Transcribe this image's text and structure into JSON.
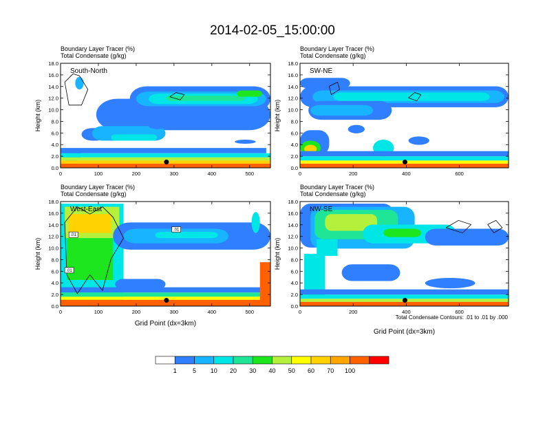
{
  "title": "2014-02-05_15:00:00",
  "footnote": "Total Condensate Contours: .01 to .01 by .000",
  "colorbar": {
    "colors": [
      "#ffffff",
      "#2f7fff",
      "#19b4ff",
      "#00e6e6",
      "#1ee696",
      "#1ee61e",
      "#b4f03c",
      "#ffff00",
      "#ffd200",
      "#ffa500",
      "#ff6000",
      "#ff0000"
    ],
    "labels": [
      "1",
      "5",
      "10",
      "20",
      "30",
      "40",
      "50",
      "60",
      "70",
      "100"
    ]
  },
  "chart_data": [
    {
      "type": "heatmap",
      "label": "South-North",
      "field_name": "Boundary Layer Tracer",
      "field_units": "(%)",
      "contour_name": "Total Condensate",
      "contour_units": "(g/kg)",
      "ylabel": "Height (km)",
      "xlabel": "",
      "xlim": [
        0,
        555
      ],
      "ylim": [
        0,
        18
      ],
      "xticks": [
        "0",
        "100",
        "200",
        "300",
        "400",
        "500"
      ],
      "yticks": [
        "0.0",
        "2.0",
        "4.0",
        "6.0",
        "8.0",
        "10.0",
        "12.0",
        "14.0",
        "16.0",
        "18.0"
      ],
      "marker": {
        "x": 280,
        "y": 1.0
      }
    },
    {
      "type": "heatmap",
      "label": "SW-NE",
      "field_name": "Boundary Layer Tracer",
      "field_units": "(%)",
      "contour_name": "Total Condensate",
      "contour_units": "(g/kg)",
      "ylabel": "Height (km)",
      "xlabel": "",
      "xlim": [
        0,
        785
      ],
      "ylim": [
        0,
        18
      ],
      "xticks": [
        "0",
        "200",
        "400",
        "600"
      ],
      "yticks": [
        "0.0",
        "2.0",
        "4.0",
        "6.0",
        "8.0",
        "10.0",
        "12.0",
        "14.0",
        "16.0",
        "18.0"
      ],
      "marker": {
        "x": 395,
        "y": 1.0
      }
    },
    {
      "type": "heatmap",
      "label": "West-East",
      "field_name": "Boundary Layer Tracer",
      "field_units": "(%)",
      "contour_name": "Total Condensate",
      "contour_units": "(g/kg)",
      "ylabel": "Height (km)",
      "xlabel": "Grid Point (dx=3km)",
      "xlim": [
        0,
        555
      ],
      "ylim": [
        0,
        18
      ],
      "xticks": [
        "0",
        "100",
        "200",
        "300",
        "400",
        "500"
      ],
      "yticks": [
        "0.0",
        "2.0",
        "4.0",
        "6.0",
        "8.0",
        "10.0",
        "12.0",
        "14.0",
        "16.0",
        "18.0"
      ],
      "marker": {
        "x": 280,
        "y": 1.0
      },
      "contour_labels": [
        ".01",
        ".01",
        ".01"
      ]
    },
    {
      "type": "heatmap",
      "label": "NW-SE",
      "field_name": "Boundary Layer Tracer",
      "field_units": "(%)",
      "contour_name": "Total Condensate",
      "contour_units": "(g/kg)",
      "ylabel": "Height (km)",
      "xlabel": "Grid Point (dx=3km)",
      "xlim": [
        0,
        785
      ],
      "ylim": [
        0,
        18
      ],
      "xticks": [
        "0",
        "200",
        "400",
        "600"
      ],
      "yticks": [
        "0.0",
        "2.0",
        "4.0",
        "6.0",
        "8.0",
        "10.0",
        "12.0",
        "14.0",
        "16.0",
        "18.0"
      ],
      "marker": {
        "x": 395,
        "y": 1.0
      }
    }
  ]
}
